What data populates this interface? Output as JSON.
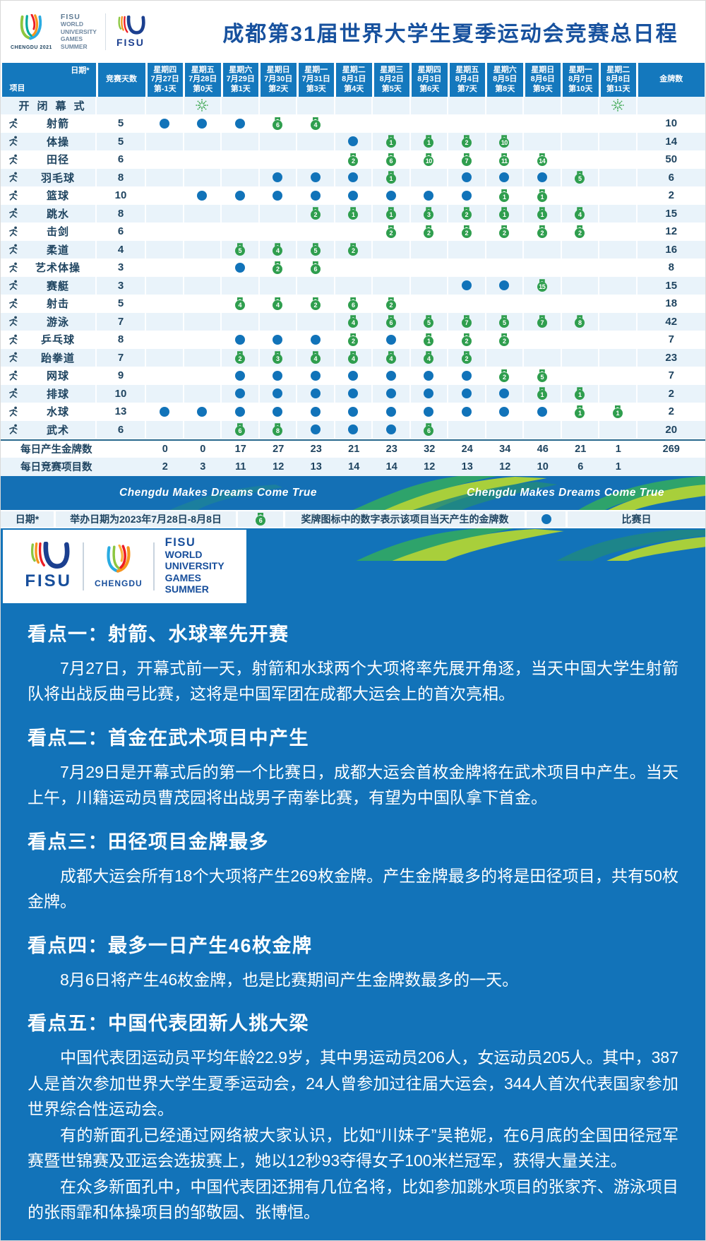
{
  "header": {
    "title": "成都第31届世界大学生夏季运动会竞赛总日程",
    "chengdu_caption": "CHENGDU 2021",
    "fisu_block": [
      "FISU",
      "WORLD",
      "UNIVERSITY",
      "GAMES",
      "SUMMER"
    ],
    "fisu_logo_caption": "FISU"
  },
  "table": {
    "corner": {
      "top": "日期*",
      "bottom": "项目"
    },
    "col_days_label": "竞赛天数",
    "gold_label": "金牌数",
    "day_columns": [
      {
        "weekday": "星期四",
        "date": "7月27日",
        "day": "第-1天"
      },
      {
        "weekday": "星期五",
        "date": "7月28日",
        "day": "第0天"
      },
      {
        "weekday": "星期六",
        "date": "7月29日",
        "day": "第1天"
      },
      {
        "weekday": "星期日",
        "date": "7月30日",
        "day": "第2天"
      },
      {
        "weekday": "星期一",
        "date": "7月31日",
        "day": "第3天"
      },
      {
        "weekday": "星期二",
        "date": "8月1日",
        "day": "第4天"
      },
      {
        "weekday": "星期三",
        "date": "8月2日",
        "day": "第5天"
      },
      {
        "weekday": "星期四",
        "date": "8月3日",
        "day": "第6天"
      },
      {
        "weekday": "星期五",
        "date": "8月4日",
        "day": "第7天"
      },
      {
        "weekday": "星期六",
        "date": "8月5日",
        "day": "第8天"
      },
      {
        "weekday": "星期日",
        "date": "8月6日",
        "day": "第9天"
      },
      {
        "weekday": "星期一",
        "date": "8月7日",
        "day": "第10天"
      },
      {
        "weekday": "星期二",
        "date": "8月8日",
        "day": "第11天"
      }
    ],
    "cell_legend": {
      "D": "competition-day",
      "F": "fireworks",
      "number": "gold-medals-that-day"
    },
    "rows": [
      {
        "name": "开闭幕式",
        "icon": null,
        "days": "",
        "cells": [
          "",
          "F",
          "",
          "",
          "",
          "",
          "",
          "",
          "",
          "",
          "",
          "",
          "F"
        ],
        "gold": ""
      },
      {
        "name": "射箭",
        "icon": "archery-pictogram",
        "days": 5,
        "cells": [
          "D",
          "D",
          "D",
          6,
          4,
          "",
          "",
          "",
          "",
          "",
          "",
          "",
          ""
        ],
        "gold": 10
      },
      {
        "name": "体操",
        "icon": "gymnastics-pictogram",
        "days": 5,
        "cells": [
          "",
          "",
          "",
          "",
          "",
          "D",
          1,
          1,
          2,
          10,
          "",
          "",
          ""
        ],
        "gold": 14
      },
      {
        "name": "田径",
        "icon": "athletics-pictogram",
        "days": 6,
        "cells": [
          "",
          "",
          "",
          "",
          "",
          2,
          6,
          10,
          7,
          11,
          14,
          "",
          ""
        ],
        "gold": 50
      },
      {
        "name": "羽毛球",
        "icon": "badminton-pictogram",
        "days": 8,
        "cells": [
          "",
          "",
          "",
          "D",
          "D",
          "D",
          1,
          "",
          "D",
          "D",
          "D",
          5,
          ""
        ],
        "gold": 6
      },
      {
        "name": "篮球",
        "icon": "basketball-pictogram",
        "days": 10,
        "cells": [
          "",
          "D",
          "D",
          "D",
          "D",
          "D",
          "D",
          "D",
          "D",
          1,
          1,
          "",
          ""
        ],
        "gold": 2
      },
      {
        "name": "跳水",
        "icon": "diving-pictogram",
        "days": 8,
        "cells": [
          "",
          "",
          "",
          "",
          2,
          1,
          1,
          3,
          2,
          1,
          1,
          4,
          ""
        ],
        "gold": 15
      },
      {
        "name": "击剑",
        "icon": "fencing-pictogram",
        "days": 6,
        "cells": [
          "",
          "",
          "",
          "",
          "",
          "",
          2,
          2,
          2,
          2,
          2,
          2,
          ""
        ],
        "gold": 12
      },
      {
        "name": "柔道",
        "icon": "judo-pictogram",
        "days": 4,
        "cells": [
          "",
          "",
          5,
          4,
          5,
          2,
          "",
          "",
          "",
          "",
          "",
          "",
          ""
        ],
        "gold": 16
      },
      {
        "name": "艺术体操",
        "icon": "rhythmic-gymnastics-pictogram",
        "days": 3,
        "cells": [
          "",
          "",
          "D",
          2,
          6,
          "",
          "",
          "",
          "",
          "",
          "",
          "",
          ""
        ],
        "gold": 8
      },
      {
        "name": "赛艇",
        "icon": "rowing-pictogram",
        "days": 3,
        "cells": [
          "",
          "",
          "",
          "",
          "",
          "",
          "",
          "",
          "D",
          "D",
          15,
          "",
          ""
        ],
        "gold": 15
      },
      {
        "name": "射击",
        "icon": "shooting-pictogram",
        "days": 5,
        "cells": [
          "",
          "",
          4,
          4,
          2,
          6,
          2,
          "",
          "",
          "",
          "",
          "",
          ""
        ],
        "gold": 18
      },
      {
        "name": "游泳",
        "icon": "swimming-pictogram",
        "days": 7,
        "cells": [
          "",
          "",
          "",
          "",
          "",
          4,
          6,
          5,
          7,
          5,
          7,
          8,
          ""
        ],
        "gold": 42
      },
      {
        "name": "乒乓球",
        "icon": "table-tennis-pictogram",
        "days": 8,
        "cells": [
          "",
          "",
          "D",
          "D",
          "D",
          2,
          "D",
          1,
          2,
          2,
          "",
          "",
          ""
        ],
        "gold": 7
      },
      {
        "name": "跆拳道",
        "icon": "taekwondo-pictogram",
        "days": 7,
        "cells": [
          "",
          "",
          2,
          3,
          4,
          4,
          4,
          4,
          2,
          "",
          "",
          "",
          ""
        ],
        "gold": 23
      },
      {
        "name": "网球",
        "icon": "tennis-pictogram",
        "days": 9,
        "cells": [
          "",
          "",
          "D",
          "D",
          "D",
          "D",
          "D",
          "D",
          "D",
          2,
          5,
          "",
          ""
        ],
        "gold": 7
      },
      {
        "name": "排球",
        "icon": "volleyball-pictogram",
        "days": 10,
        "cells": [
          "",
          "",
          "D",
          "D",
          "D",
          "D",
          "D",
          "D",
          "D",
          "D",
          1,
          1,
          ""
        ],
        "gold": 2
      },
      {
        "name": "水球",
        "icon": "water-polo-pictogram",
        "days": 13,
        "cells": [
          "D",
          "D",
          "D",
          "D",
          "D",
          "D",
          "D",
          "D",
          "D",
          "D",
          "D",
          1,
          1
        ],
        "gold": 2
      },
      {
        "name": "武术",
        "icon": "wushu-pictogram",
        "days": 6,
        "cells": [
          "",
          "",
          6,
          8,
          "D",
          "D",
          "D",
          6,
          "",
          "",
          "",
          "",
          ""
        ],
        "gold": 20
      }
    ],
    "summary": [
      {
        "label": "每日产生金牌数",
        "values": [
          0,
          0,
          17,
          27,
          23,
          21,
          23,
          32,
          24,
          34,
          46,
          21,
          1
        ],
        "total": "269"
      },
      {
        "label": "每日竞赛项目数",
        "values": [
          2,
          3,
          11,
          12,
          13,
          14,
          14,
          12,
          13,
          12,
          10,
          6,
          1
        ],
        "total": ""
      }
    ]
  },
  "banner": {
    "slogan_left": "Chengdu Makes Dreams Come True",
    "slogan_right": "Chengdu Makes Dreams Come True"
  },
  "legend": {
    "date_label": "日期*",
    "date_text": "举办日期为2023年7月28日-8月8日",
    "medal_example": "6",
    "medal_note": "奖牌图标中的数字表示该项目当天产生的金牌数",
    "dot_note": "比赛日"
  },
  "logo_box": {
    "fisu_caption": "FISU",
    "chengdu_caption": "CHENGDU",
    "lines": [
      "FISU",
      "WORLD",
      "UNIVERSITY",
      "GAMES",
      "SUMMER"
    ]
  },
  "sections": [
    {
      "title": "看点一：射箭、水球率先开赛",
      "paragraphs": [
        "7月27日，开幕式前一天，射箭和水球两个大项将率先展开角逐，当天中国大学生射箭队将出战反曲弓比赛，这将是中国军团在成都大运会上的首次亮相。"
      ]
    },
    {
      "title": "看点二：首金在武术项目中产生",
      "paragraphs": [
        "7月29日是开幕式后的第一个比赛日，成都大运会首枚金牌将在武术项目中产生。当天上午，川籍运动员曹茂园将出战男子南拳比赛，有望为中国队拿下首金。"
      ]
    },
    {
      "title": "看点三：田径项目金牌最多",
      "paragraphs": [
        "成都大运会所有18个大项将产生269枚金牌。产生金牌最多的将是田径项目，共有50枚金牌。"
      ]
    },
    {
      "title": "看点四：最多一日产生46枚金牌",
      "paragraphs": [
        "8月6日将产生46枚金牌，也是比赛期间产生金牌数最多的一天。"
      ]
    },
    {
      "title": "看点五：中国代表团新人挑大梁",
      "paragraphs": [
        "中国代表团运动员平均年龄22.9岁，其中男运动员206人，女运动员205人。其中，387人是首次参加世界大学生夏季运动会，24人曾参加过往届大运会，344人首次代表国家参加世界综合性运动会。",
        "有的新面孔已经通过网络被大家认识，比如“川妹子”吴艳妮，在6月底的全国田径冠军赛暨世锦赛及亚运会选拔赛上，她以12秒93夺得女子100米栏冠军，获得大量关注。",
        "在众多新面孔中，中国代表团还拥有几位名将，比如参加跳水项目的张家齐、游泳项目的张雨霏和体操项目的邹敬园、张博恒。"
      ]
    }
  ],
  "colors": {
    "table_header_blue": "#1478BD",
    "row_stripe_blue": "#E9F3FA",
    "dot_blue": "#1173B9",
    "medal_green": "#2F9E4E",
    "content_blue": "#1273B9",
    "title_blue": "#17519E",
    "text_navy": "#1F4460",
    "wave_green": "#2EA36B",
    "wave_lime": "#A8CF3B"
  }
}
